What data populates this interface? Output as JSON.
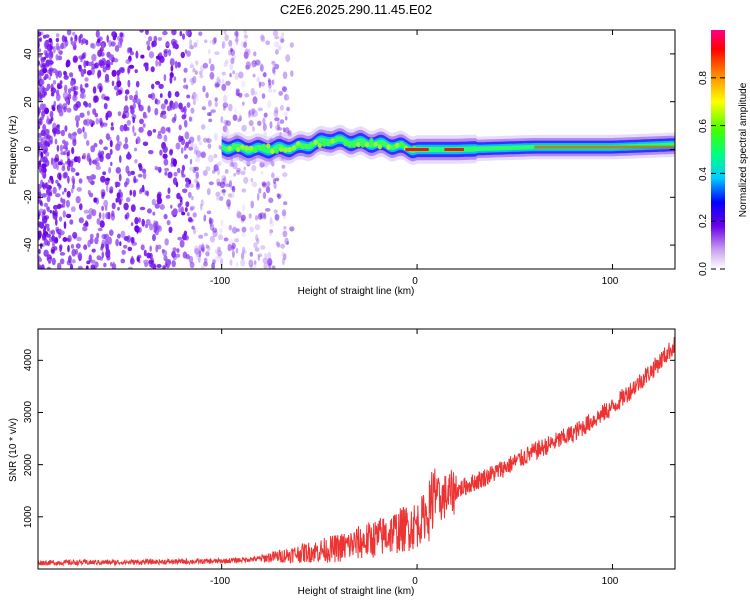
{
  "title": "C2E6.2025.290.11.45.E02",
  "chart_data": [
    {
      "type": "heatmap",
      "name": "spectrogram",
      "xlabel": "Height of straight line (km)",
      "ylabel": "Frequency (Hz)",
      "xlim": [
        -194,
        132
      ],
      "ylim": [
        -50,
        50
      ],
      "x_ticks": [
        -100,
        0,
        100
      ],
      "x_tick_labels": [
        "-100",
        "0",
        "100"
      ],
      "y_ticks": [
        -40,
        -20,
        0,
        20,
        40
      ],
      "y_tick_labels": [
        "-40",
        "-20",
        "0",
        "20",
        "40"
      ],
      "colorbar": {
        "label": "Normalized spectral amplitude",
        "range": [
          0,
          1
        ],
        "ticks": [
          0,
          0.2,
          0.4,
          0.6,
          0.8
        ],
        "tick_labels": [
          "0.0",
          "0.2",
          "0.4",
          "0.6",
          "0.8"
        ]
      },
      "ridge": {
        "x": [
          -100,
          -80,
          -60,
          -45,
          -30,
          -15,
          0,
          20,
          60,
          100,
          132
        ],
        "y": [
          1,
          0,
          1,
          4,
          3,
          2,
          0,
          0,
          1,
          1,
          2
        ]
      }
    },
    {
      "type": "line",
      "name": "snr",
      "xlabel": "Height of straight line (km)",
      "ylabel": "SNR (10 * v/v)",
      "xlim": [
        -194,
        132
      ],
      "ylim": [
        0,
        4600
      ],
      "x_ticks": [
        -100,
        0,
        100
      ],
      "x_tick_labels": [
        "-100",
        "0",
        "100"
      ],
      "y_ticks": [
        1000,
        2000,
        3000,
        4000
      ],
      "y_tick_labels": [
        "1000",
        "2000",
        "3000",
        "4000"
      ],
      "trend": {
        "x": [
          -194,
          -150,
          -100,
          -80,
          -60,
          -40,
          -20,
          0,
          10,
          20,
          40,
          60,
          80,
          100,
          120,
          132
        ],
        "y": [
          120,
          130,
          150,
          200,
          300,
          400,
          600,
          850,
          1300,
          1500,
          1850,
          2250,
          2600,
          3100,
          3800,
          4300
        ]
      },
      "color": "#ee3333"
    }
  ]
}
